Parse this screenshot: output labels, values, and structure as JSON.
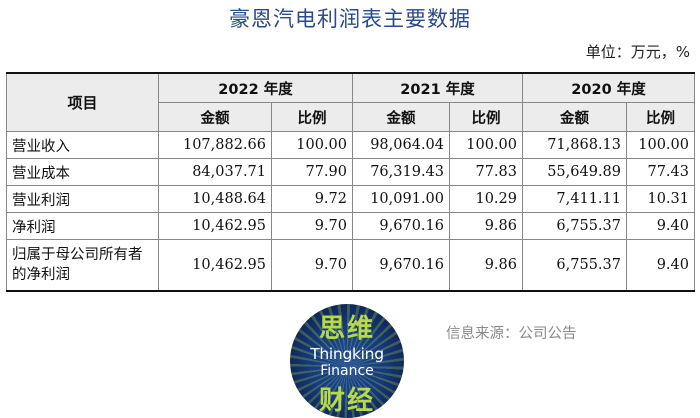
{
  "title": "豪恩汽电利润表主要数据",
  "unit_note": "单位：万元，%",
  "table": {
    "item_header": "项目",
    "years": [
      "2022 年度",
      "2021 年度",
      "2020 年度"
    ],
    "amount_label": "金额",
    "ratio_label": "比例",
    "rows": [
      {
        "label": "营业收入",
        "values": [
          "107,882.66",
          "100.00",
          "98,064.04",
          "100.00",
          "71,868.13",
          "100.00"
        ]
      },
      {
        "label": "营业成本",
        "values": [
          "84,037.71",
          "77.90",
          "76,319.43",
          "77.83",
          "55,649.89",
          "77.43"
        ]
      },
      {
        "label": "营业利润",
        "values": [
          "10,488.64",
          "9.72",
          "10,091.00",
          "10.29",
          "7,411.11",
          "10.31"
        ]
      },
      {
        "label": "净利润",
        "values": [
          "10,462.95",
          "9.70",
          "9,670.16",
          "9.86",
          "6,755.37",
          "9.40"
        ]
      },
      {
        "label": "归属于母公司所有者的净利润",
        "values": [
          "10,462.95",
          "9.70",
          "9,670.16",
          "9.86",
          "6,755.37",
          "9.40"
        ]
      }
    ]
  },
  "logo": {
    "top_text": "思维",
    "en_line1": "Thingking",
    "en_line2": "Finance",
    "bottom_text": "财经"
  },
  "source": "信息来源：公司公告",
  "colors": {
    "title": "#2a4a8c",
    "logo_green": "#b7d94a",
    "logo_blue": "#163a7a"
  }
}
